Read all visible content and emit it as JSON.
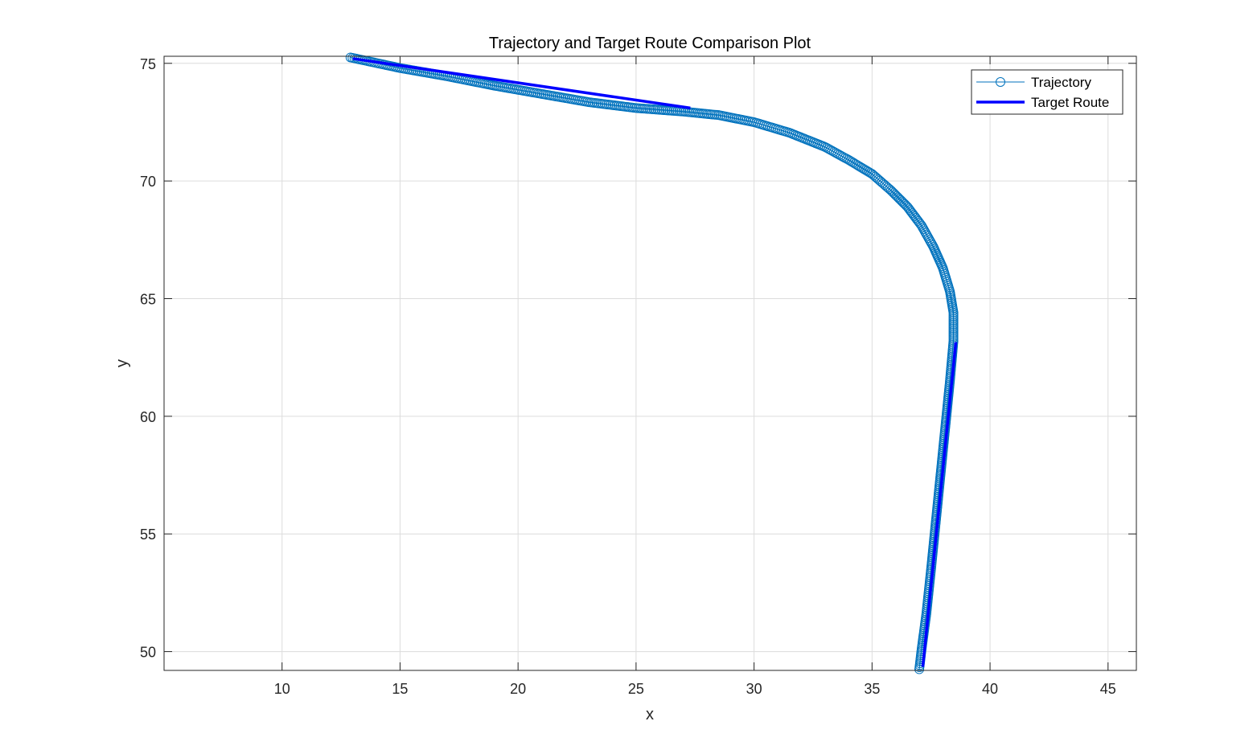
{
  "chart_data": {
    "type": "line",
    "title": "Trajectory and Target Route Comparison Plot",
    "xlabel": "x",
    "ylabel": "y",
    "xlim": [
      5,
      46.2
    ],
    "ylim": [
      49.2,
      75.3
    ],
    "xticks": [
      10,
      15,
      20,
      25,
      30,
      35,
      40,
      45
    ],
    "yticks": [
      50,
      55,
      60,
      65,
      70,
      75
    ],
    "grid": true,
    "legend_position": "top-right",
    "series": [
      {
        "name": "Trajectory",
        "style": "line-with-circle-markers",
        "color": "#0072BD",
        "x": [
          12.9,
          15,
          17,
          19,
          21,
          23,
          25,
          27,
          28.5,
          30,
          31.5,
          33,
          34,
          35,
          35.8,
          36.5,
          37.1,
          37.6,
          38.0,
          38.3,
          38.45,
          38.45,
          38.3,
          38.1,
          37.9,
          37.7,
          37.5,
          37.3,
          37.1,
          37.0
        ],
        "y": [
          75.25,
          74.8,
          74.45,
          74.05,
          73.7,
          73.35,
          73.1,
          72.95,
          72.8,
          72.5,
          72.05,
          71.45,
          70.9,
          70.3,
          69.6,
          68.9,
          68.1,
          67.2,
          66.3,
          65.3,
          64.4,
          63.2,
          61.5,
          59.5,
          57.5,
          55.5,
          53.5,
          51.6,
          50.1,
          49.25
        ]
      },
      {
        "name": "Target Route",
        "style": "thick-line",
        "color": "#0000FF",
        "x": [
          13.0,
          27.3,
          null,
          38.55,
          37.15
        ],
        "y": [
          75.2,
          73.1,
          null,
          63.15,
          49.35
        ]
      }
    ]
  }
}
